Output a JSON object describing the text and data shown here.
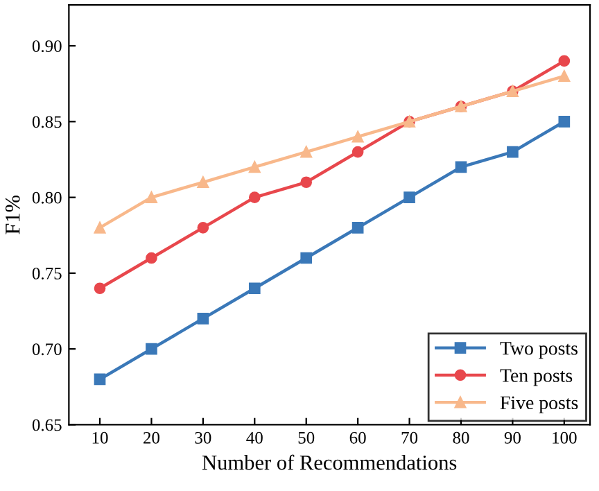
{
  "chart_data": {
    "type": "line",
    "xlabel": "Number of Recommendations",
    "ylabel": "F1%",
    "x": [
      10,
      20,
      30,
      40,
      50,
      60,
      70,
      80,
      90,
      100
    ],
    "series": [
      {
        "name": "Two posts",
        "color": "#3a78b8",
        "marker": "square",
        "values": [
          0.68,
          0.7,
          0.72,
          0.74,
          0.76,
          0.78,
          0.8,
          0.82,
          0.83,
          0.85
        ]
      },
      {
        "name": "Ten posts",
        "color": "#e8474c",
        "marker": "circle",
        "values": [
          0.74,
          0.76,
          0.78,
          0.8,
          0.81,
          0.83,
          0.85,
          0.86,
          0.87,
          0.89
        ]
      },
      {
        "name": "Five posts",
        "color": "#f8b88b",
        "marker": "triangle",
        "values": [
          0.78,
          0.8,
          0.81,
          0.82,
          0.83,
          0.84,
          0.85,
          0.86,
          0.87,
          0.88
        ]
      }
    ],
    "xlim": [
      4,
      105
    ],
    "xticks": [
      10,
      20,
      30,
      40,
      50,
      60,
      70,
      80,
      90,
      100
    ],
    "ylim": [
      0.65,
      0.927
    ],
    "yticks": [
      {
        "value": 0.65,
        "label": "0.65"
      },
      {
        "value": 0.7,
        "label": "0.70"
      },
      {
        "value": 0.75,
        "label": "0.75"
      },
      {
        "value": 0.8,
        "label": "0.80"
      },
      {
        "value": 0.85,
        "label": "0.85"
      },
      {
        "value": 0.9,
        "label": "0.90"
      }
    ],
    "grid": false,
    "legend": "bottom right",
    "line_style": "solid"
  }
}
